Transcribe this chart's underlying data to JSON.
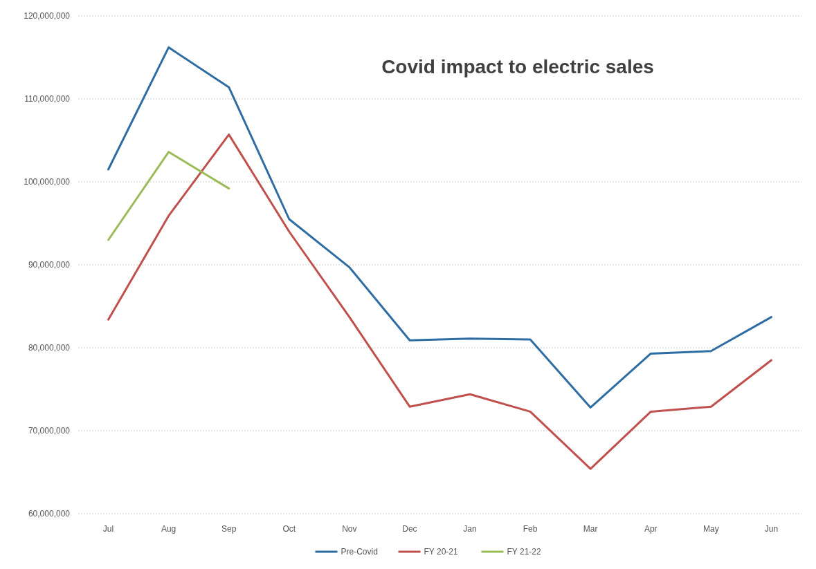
{
  "chart_data": {
    "type": "line",
    "title": "Covid impact to electric sales",
    "categories": [
      "Jul",
      "Aug",
      "Sep",
      "Oct",
      "Nov",
      "Dec",
      "Jan",
      "Feb",
      "Mar",
      "Apr",
      "May",
      "Jun"
    ],
    "series": [
      {
        "name": "Pre-Covid",
        "color": "#2e6da4",
        "values": [
          101500000,
          116200000,
          111400000,
          95500000,
          89700000,
          80900000,
          81100000,
          81000000,
          72800000,
          79300000,
          79600000,
          83700000
        ]
      },
      {
        "name": "FY 20-21",
        "color": "#c0504d",
        "values": [
          83400000,
          95900000,
          105700000,
          94000000,
          83700000,
          72900000,
          74400000,
          72300000,
          65400000,
          72300000,
          72900000,
          78500000
        ]
      },
      {
        "name": "FY 21-22",
        "color": "#9bbb59",
        "values": [
          93000000,
          103600000,
          99200000,
          null,
          null,
          null,
          null,
          null,
          null,
          null,
          null,
          null
        ]
      }
    ],
    "ylim": [
      60000000,
      120000000
    ],
    "yticks": [
      {
        "value": 60000000,
        "label": "60,000,000"
      },
      {
        "value": 70000000,
        "label": "70,000,000"
      },
      {
        "value": 80000000,
        "label": "80,000,000"
      },
      {
        "value": 90000000,
        "label": "90,000,000"
      },
      {
        "value": 100000000,
        "label": "100,000,000"
      },
      {
        "value": 110000000,
        "label": "110,000,000"
      },
      {
        "value": 120000000,
        "label": "120,000,000"
      }
    ],
    "grid": "y",
    "legend": "bottom",
    "marker": "none",
    "line_style": "solid"
  }
}
